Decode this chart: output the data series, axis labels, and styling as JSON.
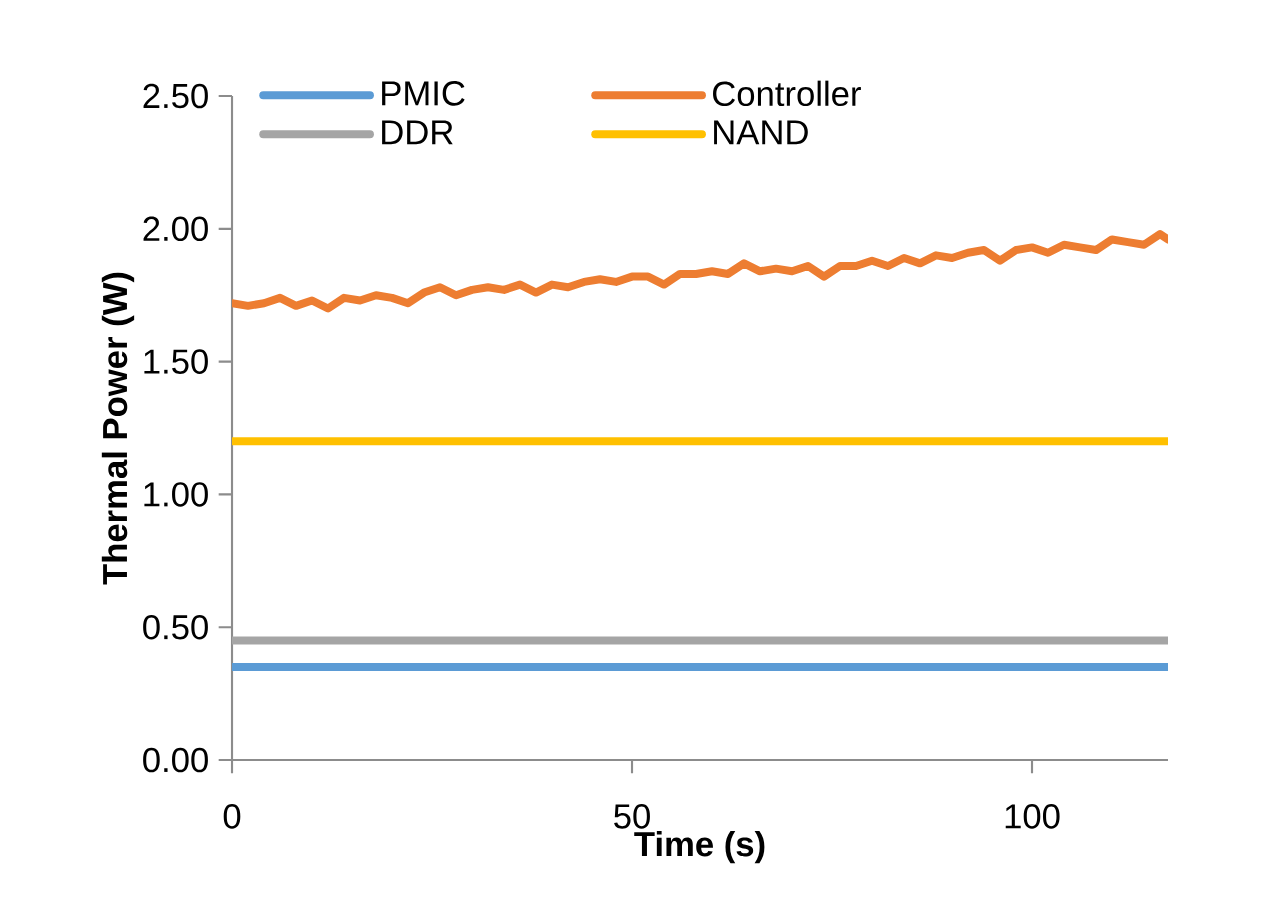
{
  "chart_data": {
    "type": "line",
    "xlabel": "Time (s)",
    "ylabel": "Thermal Power (W)",
    "xlim": [
      0,
      117
    ],
    "xticks": [
      0,
      50,
      100
    ],
    "ylim": [
      0,
      2.5
    ],
    "yticks": [
      {
        "value": 0,
        "label": "0.00"
      },
      {
        "value": 0.5,
        "label": "0.50"
      },
      {
        "value": 1.0,
        "label": "1.00"
      },
      {
        "value": 1.5,
        "label": "1.50"
      },
      {
        "value": 2.0,
        "label": "2.00"
      },
      {
        "value": 2.5,
        "label": "2.50"
      }
    ],
    "x": [
      0,
      2,
      4,
      6,
      8,
      10,
      12,
      14,
      16,
      18,
      20,
      22,
      24,
      26,
      28,
      30,
      32,
      34,
      36,
      38,
      40,
      42,
      44,
      46,
      48,
      50,
      52,
      54,
      56,
      58,
      60,
      62,
      64,
      66,
      68,
      70,
      72,
      74,
      76,
      78,
      80,
      82,
      84,
      86,
      88,
      90,
      92,
      94,
      96,
      98,
      100,
      102,
      104,
      106,
      108,
      110,
      112,
      114,
      116,
      117
    ],
    "series": [
      {
        "name": "PMIC",
        "color": "#5b9bd5",
        "values": [
          0.35,
          0.35,
          0.35,
          0.35,
          0.35,
          0.35,
          0.35,
          0.35,
          0.35,
          0.35,
          0.35,
          0.35,
          0.35,
          0.35,
          0.35,
          0.35,
          0.35,
          0.35,
          0.35,
          0.35,
          0.35,
          0.35,
          0.35,
          0.35,
          0.35,
          0.35,
          0.35,
          0.35,
          0.35,
          0.35,
          0.35,
          0.35,
          0.35,
          0.35,
          0.35,
          0.35,
          0.35,
          0.35,
          0.35,
          0.35,
          0.35,
          0.35,
          0.35,
          0.35,
          0.35,
          0.35,
          0.35,
          0.35,
          0.35,
          0.35,
          0.35,
          0.35,
          0.35,
          0.35,
          0.35,
          0.35,
          0.35,
          0.35,
          0.35,
          0.35
        ]
      },
      {
        "name": "Controller",
        "color": "#ed7d31",
        "values": [
          1.72,
          1.71,
          1.72,
          1.74,
          1.71,
          1.73,
          1.7,
          1.74,
          1.73,
          1.75,
          1.74,
          1.72,
          1.76,
          1.78,
          1.75,
          1.77,
          1.78,
          1.77,
          1.79,
          1.76,
          1.79,
          1.78,
          1.8,
          1.81,
          1.8,
          1.82,
          1.82,
          1.79,
          1.83,
          1.83,
          1.84,
          1.83,
          1.87,
          1.84,
          1.85,
          1.84,
          1.86,
          1.82,
          1.86,
          1.86,
          1.88,
          1.86,
          1.89,
          1.87,
          1.9,
          1.89,
          1.91,
          1.92,
          1.88,
          1.92,
          1.93,
          1.91,
          1.94,
          1.93,
          1.92,
          1.96,
          1.95,
          1.94,
          1.98,
          1.96
        ]
      },
      {
        "name": "DDR",
        "color": "#a5a5a5",
        "values": [
          0.45,
          0.45,
          0.45,
          0.45,
          0.45,
          0.45,
          0.45,
          0.45,
          0.45,
          0.45,
          0.45,
          0.45,
          0.45,
          0.45,
          0.45,
          0.45,
          0.45,
          0.45,
          0.45,
          0.45,
          0.45,
          0.45,
          0.45,
          0.45,
          0.45,
          0.45,
          0.45,
          0.45,
          0.45,
          0.45,
          0.45,
          0.45,
          0.45,
          0.45,
          0.45,
          0.45,
          0.45,
          0.45,
          0.45,
          0.45,
          0.45,
          0.45,
          0.45,
          0.45,
          0.45,
          0.45,
          0.45,
          0.45,
          0.45,
          0.45,
          0.45,
          0.45,
          0.45,
          0.45,
          0.45,
          0.45,
          0.45,
          0.45,
          0.45,
          0.45
        ]
      },
      {
        "name": "NAND",
        "color": "#ffc000",
        "values": [
          1.2,
          1.2,
          1.2,
          1.2,
          1.2,
          1.2,
          1.2,
          1.2,
          1.2,
          1.2,
          1.2,
          1.2,
          1.2,
          1.2,
          1.2,
          1.2,
          1.2,
          1.2,
          1.2,
          1.2,
          1.2,
          1.2,
          1.2,
          1.2,
          1.2,
          1.2,
          1.2,
          1.2,
          1.2,
          1.2,
          1.2,
          1.2,
          1.2,
          1.2,
          1.2,
          1.2,
          1.2,
          1.2,
          1.2,
          1.2,
          1.2,
          1.2,
          1.2,
          1.2,
          1.2,
          1.2,
          1.2,
          1.2,
          1.2,
          1.2,
          1.2,
          1.2,
          1.2,
          1.2,
          1.2,
          1.2,
          1.2,
          1.2,
          1.2,
          1.2
        ]
      }
    ],
    "legend": "top",
    "grid": false,
    "marker": "none",
    "line_style": "solid"
  }
}
